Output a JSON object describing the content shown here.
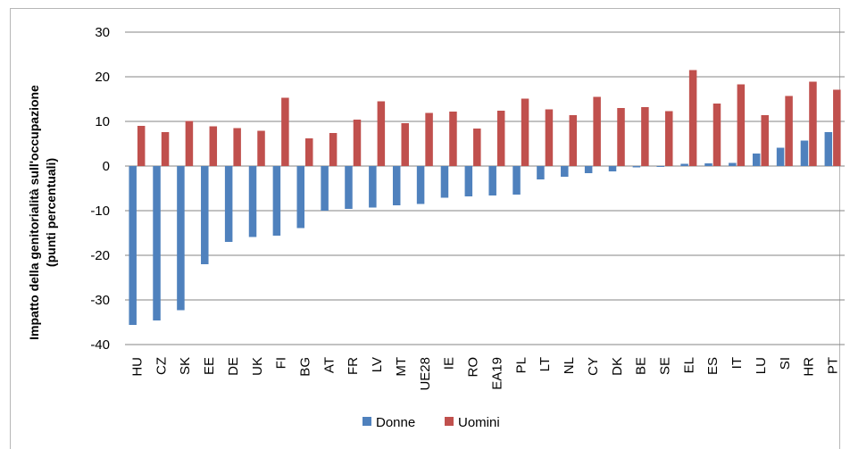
{
  "chart_data": {
    "type": "bar",
    "title": "",
    "xlabel": "",
    "ylabel_line1": "Impatto della genitorialità sull'occupazione",
    "ylabel_line2": "(punti percentuali)",
    "ylim": [
      -40,
      30
    ],
    "yticks": [
      30,
      20,
      10,
      0,
      -10,
      -20,
      -30,
      -40
    ],
    "grid": true,
    "legend_position": "bottom",
    "categories": [
      "HU",
      "CZ",
      "SK",
      "EE",
      "DE",
      "UK",
      "FI",
      "BG",
      "AT",
      "FR",
      "LV",
      "MT",
      "UE28",
      "IE",
      "RO",
      "EA19",
      "PL",
      "LT",
      "NL",
      "CY",
      "DK",
      "BE",
      "SE",
      "EL",
      "ES",
      "IT",
      "LU",
      "SI",
      "HR",
      "PT"
    ],
    "series": [
      {
        "name": "Donne",
        "color": "#4f81bd",
        "values": [
          -35.6,
          -34.6,
          -32.3,
          -22.0,
          -17.0,
          -15.9,
          -15.6,
          -13.9,
          -10.0,
          -9.6,
          -9.3,
          -8.8,
          -8.5,
          -7.1,
          -6.8,
          -6.6,
          -6.4,
          -3.0,
          -2.4,
          -1.6,
          -1.2,
          -0.3,
          -0.2,
          0.5,
          0.6,
          0.7,
          2.8,
          4.1,
          5.7,
          7.6
        ]
      },
      {
        "name": "Uomini",
        "color": "#c0504d",
        "values": [
          9.0,
          7.6,
          10.1,
          8.9,
          8.5,
          7.9,
          15.3,
          6.2,
          7.4,
          10.4,
          14.5,
          9.6,
          11.9,
          12.2,
          8.4,
          12.4,
          15.1,
          12.7,
          11.4,
          15.5,
          13.0,
          13.2,
          12.3,
          21.5,
          14.0,
          18.3,
          11.4,
          15.7,
          18.9,
          17.1
        ]
      }
    ]
  }
}
